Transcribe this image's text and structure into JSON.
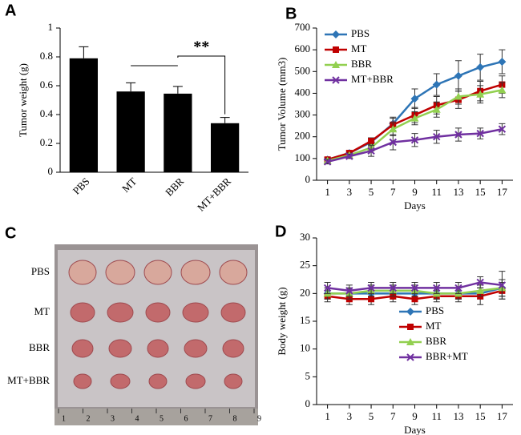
{
  "chart_data": [
    {
      "type": "bar",
      "panel_label": "A",
      "y_label": "Tumor  weight (g)",
      "categories": [
        "PBS",
        "MT",
        "BBR",
        "MT+BBR"
      ],
      "values": [
        0.79,
        0.56,
        0.545,
        0.34
      ],
      "errors": [
        0.08,
        0.06,
        0.05,
        0.04
      ],
      "color": "#000000",
      "ylim": [
        0,
        1
      ],
      "yticks": [
        0,
        0.2,
        0.4,
        0.6,
        0.8,
        1
      ],
      "annotation": "**"
    },
    {
      "type": "line",
      "panel_label": "B",
      "x_label": "Days",
      "y_label": "Tumor  Volume (mm3)",
      "x": [
        1,
        3,
        5,
        7,
        9,
        11,
        13,
        15,
        17
      ],
      "xlim": [
        0,
        18
      ],
      "xticks": [
        1,
        3,
        5,
        7,
        9,
        11,
        13,
        15,
        17
      ],
      "ylim": [
        0,
        700
      ],
      "yticks": [
        0,
        100,
        200,
        300,
        400,
        500,
        600,
        700
      ],
      "legend": "upper left",
      "series": [
        {
          "name": "PBS",
          "color": "#2e75b6",
          "marker": "diamond",
          "values": [
            95,
            125,
            175,
            260,
            375,
            440,
            480,
            520,
            545
          ],
          "errors": [
            10,
            10,
            20,
            30,
            45,
            50,
            70,
            60,
            55
          ]
        },
        {
          "name": "MT",
          "color": "#c00000",
          "marker": "square",
          "values": [
            95,
            125,
            180,
            255,
            300,
            345,
            370,
            410,
            440
          ],
          "errors": [
            10,
            10,
            15,
            30,
            35,
            40,
            40,
            45,
            40
          ]
        },
        {
          "name": "BBR",
          "color": "#92d050",
          "marker": "triangle",
          "values": [
            90,
            115,
            150,
            235,
            285,
            325,
            385,
            395,
            415
          ],
          "errors": [
            10,
            10,
            15,
            30,
            30,
            35,
            35,
            40,
            35
          ]
        },
        {
          "name": "MT+BBR",
          "color": "#7030a0",
          "marker": "x",
          "values": [
            85,
            110,
            135,
            175,
            185,
            200,
            210,
            215,
            235
          ],
          "errors": [
            10,
            10,
            25,
            35,
            30,
            30,
            30,
            25,
            25
          ]
        }
      ]
    },
    {
      "type": "line",
      "panel_label": "D",
      "x_label": "Days",
      "y_label": "Body weight (g)",
      "x": [
        1,
        3,
        5,
        7,
        9,
        11,
        13,
        15,
        17
      ],
      "xlim": [
        0,
        18
      ],
      "xticks": [
        1,
        3,
        5,
        7,
        9,
        11,
        13,
        15,
        17
      ],
      "ylim": [
        0,
        30
      ],
      "yticks": [
        0,
        5,
        10,
        15,
        20,
        25,
        30
      ],
      "legend": "lower center",
      "series": [
        {
          "name": "PBS",
          "color": "#2e75b6",
          "marker": "diamond",
          "values": [
            20,
            20,
            20,
            20,
            20,
            20,
            20,
            20,
            21
          ],
          "errors": [
            1,
            1,
            1,
            1,
            1,
            1,
            1,
            1,
            1.5
          ]
        },
        {
          "name": "MT",
          "color": "#c00000",
          "marker": "square",
          "values": [
            19.5,
            19,
            19,
            19.5,
            19,
            19.5,
            19.5,
            19.5,
            20.5
          ],
          "errors": [
            1,
            1,
            1,
            1,
            1,
            1,
            1,
            1.5,
            1.5
          ]
        },
        {
          "name": "BBR",
          "color": "#92d050",
          "marker": "triangle",
          "values": [
            20,
            20,
            20.5,
            20.5,
            20.5,
            20,
            20,
            20.5,
            21
          ],
          "errors": [
            1,
            1,
            1,
            1,
            1,
            1,
            1,
            1,
            1.5
          ]
        },
        {
          "name": "BBR+MT",
          "color": "#7030a0",
          "marker": "x",
          "values": [
            21,
            20.5,
            21,
            21,
            21,
            21,
            21,
            22,
            21.5
          ],
          "errors": [
            1,
            1,
            1,
            1,
            1,
            1,
            1,
            1,
            2.5
          ]
        }
      ]
    }
  ],
  "photo": {
    "panel_label": "C",
    "row_labels": [
      "PBS",
      "MT",
      "BBR",
      "MT+BBR"
    ],
    "ruler_labels": [
      "1",
      "2",
      "3",
      "4",
      "5",
      "6",
      "7",
      "8",
      "9"
    ]
  }
}
